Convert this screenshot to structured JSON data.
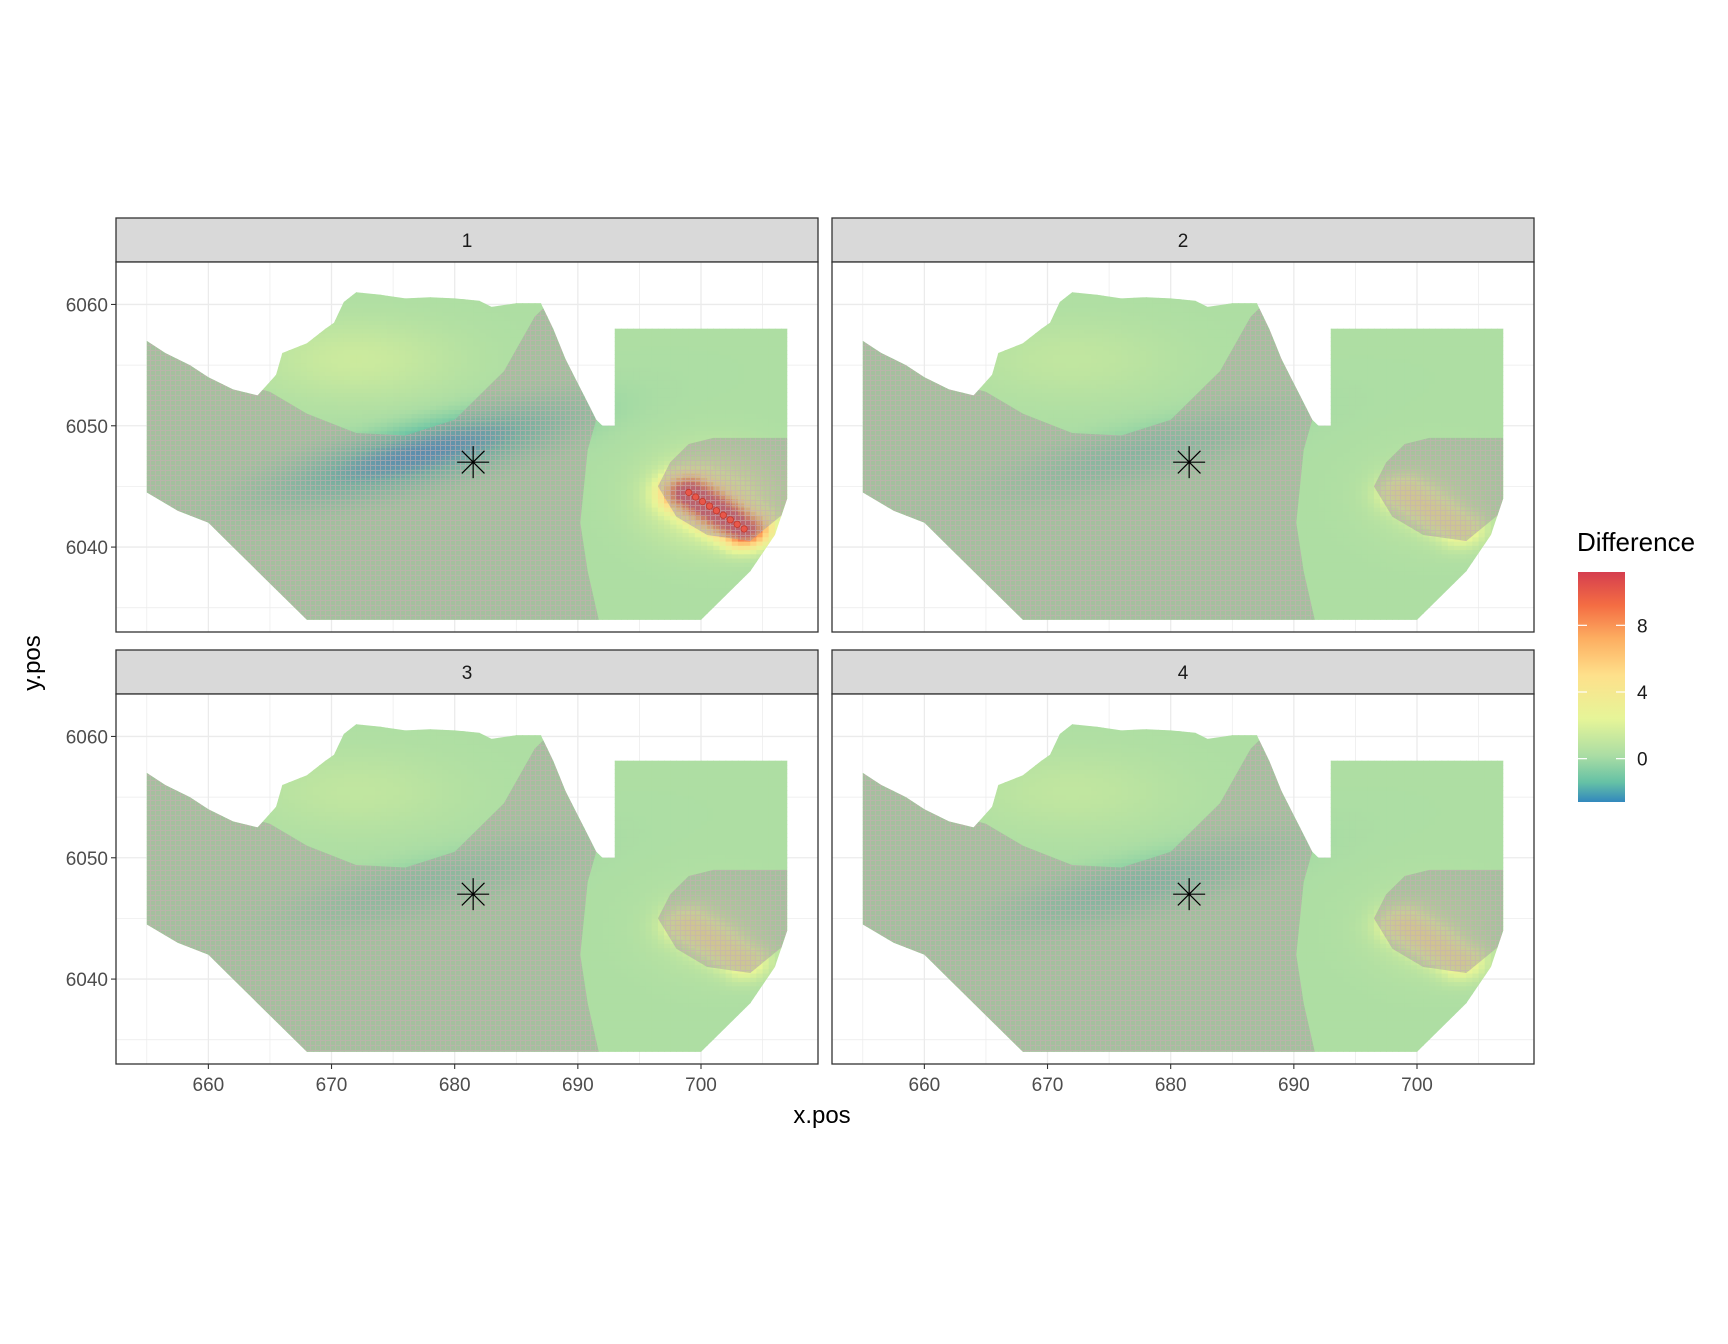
{
  "chart_data": {
    "type": "heatmap",
    "facets": [
      "1",
      "2",
      "3",
      "4"
    ],
    "xlabel": "x.pos",
    "ylabel": "y.pos",
    "xlim": [
      652.5,
      709.5
    ],
    "ylim": [
      6033,
      6063.5
    ],
    "xticks": [
      660,
      670,
      680,
      690,
      700
    ],
    "yticks": [
      6040,
      6050,
      6060
    ],
    "grid": true,
    "marker": {
      "symbol": "asterisk",
      "x": 681.5,
      "y": 6047
    },
    "legend": {
      "title": "Difference",
      "position": "right",
      "range": [
        -2.6,
        11.2
      ],
      "breaks": [
        0,
        4,
        8
      ],
      "colors": [
        "#3288bd",
        "#66c2a5",
        "#abdda4",
        "#e6f598",
        "#fee08b",
        "#fdae61",
        "#f46d43",
        "#d53e4f"
      ]
    },
    "field": {
      "background_value": 0.3,
      "hotspot": {
        "x_start": 699,
        "y_start": 6044.5,
        "x_end": 703.5,
        "y_end": 6041.5
      },
      "panels": [
        {
          "facet": "1",
          "north_lobe": 1.4,
          "center_low": -2.6,
          "east_high": 11.0
        },
        {
          "facet": "2",
          "north_lobe": 1.0,
          "center_low": -0.8,
          "east_high": 3.4
        },
        {
          "facet": "3",
          "north_lobe": 1.0,
          "center_low": -0.6,
          "east_high": 3.4
        },
        {
          "facet": "4",
          "north_lobe": 1.0,
          "center_low": -1.0,
          "east_high": 3.6
        }
      ]
    }
  }
}
